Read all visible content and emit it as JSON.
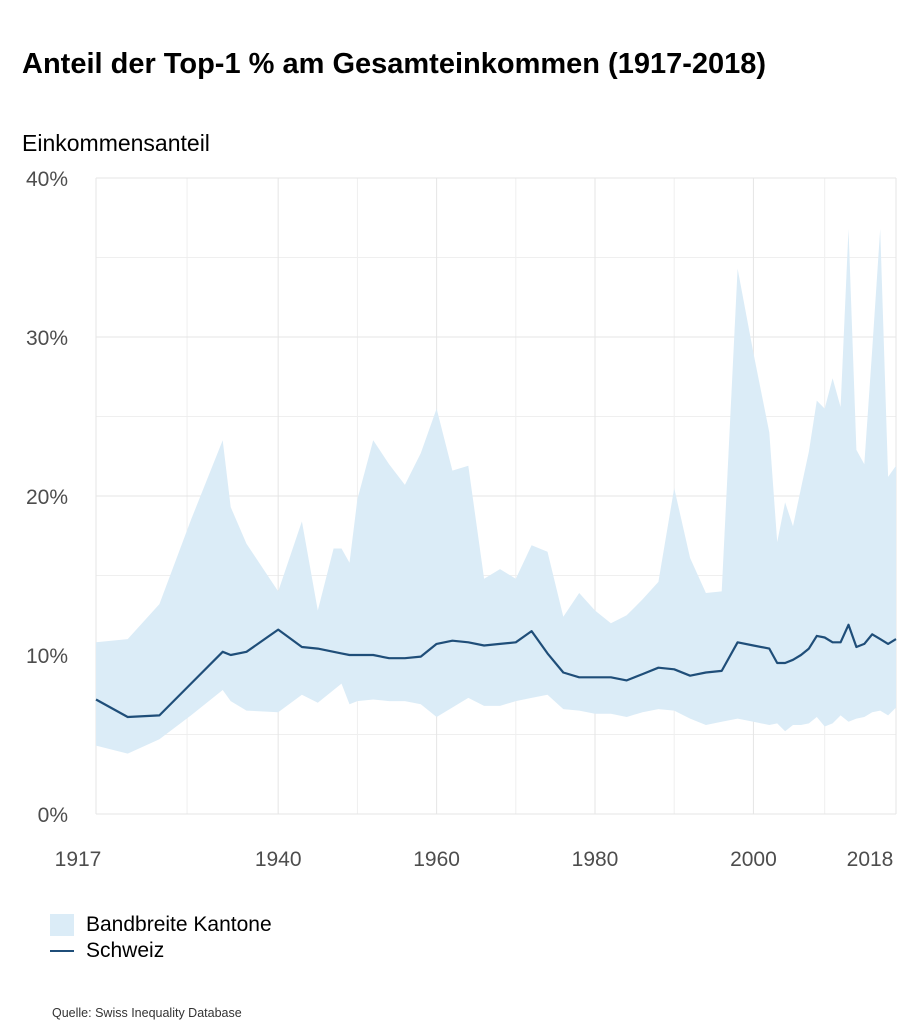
{
  "title": "Anteil der Top-1 % am Gesamteinkommen (1917-2018)",
  "source": "Quelle: Swiss Inequality Database",
  "legend": {
    "band": "Bandbreite Kantone",
    "line": "Schweiz"
  },
  "colors": {
    "band": "#dbecf7",
    "line": "#1f4e79",
    "grid": "#e5e5e5",
    "tick_text": "#4d4d4d"
  },
  "chart_data": {
    "type": "area",
    "title": "Anteil der Top-1 % am Gesamteinkommen (1917-2018)",
    "ylabel": "Einkommensanteil",
    "xlabel": "",
    "xlim": [
      1917,
      2018
    ],
    "ylim": [
      0,
      40
    ],
    "x_ticks": [
      1917,
      1940,
      1960,
      1980,
      2000,
      2018
    ],
    "x_tick_labels": [
      "1917",
      "1940",
      "1960",
      "1980",
      "2000",
      "2018"
    ],
    "y_ticks": [
      0,
      10,
      20,
      30,
      40
    ],
    "y_tick_labels": [
      "0%",
      "10%",
      "20%",
      "30%",
      "40%"
    ],
    "grid": true,
    "legend_position": "bottom-left",
    "series": [
      {
        "name": "Bandbreite Kantone",
        "kind": "band",
        "x": [
          1917,
          1921,
          1925,
          1929,
          1933,
          1934,
          1936,
          1940,
          1943,
          1945,
          1947,
          1948,
          1949,
          1950,
          1952,
          1954,
          1956,
          1958,
          1960,
          1962,
          1964,
          1966,
          1968,
          1970,
          1972,
          1974,
          1976,
          1978,
          1980,
          1982,
          1984,
          1986,
          1988,
          1990,
          1992,
          1994,
          1996,
          1998,
          2000,
          2002,
          2003,
          2004,
          2005,
          2006,
          2007,
          2008,
          2009,
          2010,
          2011,
          2012,
          2013,
          2014,
          2015,
          2016,
          2017,
          2018
        ],
        "upper": [
          10.8,
          11.0,
          13.2,
          18.5,
          23.5,
          19.3,
          17.0,
          14.0,
          18.4,
          12.8,
          16.7,
          16.7,
          15.8,
          19.8,
          23.5,
          22.0,
          20.7,
          22.7,
          25.5,
          21.6,
          21.9,
          14.8,
          15.4,
          14.8,
          16.9,
          16.5,
          12.4,
          13.9,
          12.8,
          12.0,
          12.5,
          13.5,
          14.6,
          20.5,
          16.1,
          13.9,
          14.0,
          34.3,
          29.0,
          24.0,
          17.1,
          19.6,
          18.1,
          20.5,
          22.8,
          26.0,
          25.5,
          27.4,
          25.6,
          36.8,
          22.9,
          22.0,
          29.2,
          36.8,
          21.2,
          21.9
        ],
        "lower": [
          4.3,
          3.8,
          4.7,
          6.2,
          7.8,
          7.1,
          6.5,
          6.4,
          7.5,
          7.0,
          7.8,
          8.2,
          6.9,
          7.1,
          7.2,
          7.1,
          7.1,
          6.9,
          6.1,
          6.7,
          7.3,
          6.8,
          6.8,
          7.1,
          7.3,
          7.5,
          6.6,
          6.5,
          6.3,
          6.3,
          6.1,
          6.4,
          6.6,
          6.5,
          6.0,
          5.6,
          5.8,
          6.0,
          5.8,
          5.6,
          5.7,
          5.2,
          5.6,
          5.6,
          5.7,
          6.1,
          5.5,
          5.7,
          6.2,
          5.8,
          6.0,
          6.1,
          6.4,
          6.5,
          6.2,
          6.7
        ]
      },
      {
        "name": "Schweiz",
        "kind": "line",
        "x": [
          1917,
          1921,
          1925,
          1929,
          1933,
          1934,
          1936,
          1940,
          1943,
          1945,
          1947,
          1948,
          1949,
          1950,
          1952,
          1954,
          1956,
          1958,
          1960,
          1962,
          1964,
          1966,
          1968,
          1970,
          1972,
          1974,
          1976,
          1978,
          1980,
          1982,
          1984,
          1986,
          1988,
          1990,
          1992,
          1994,
          1996,
          1998,
          2000,
          2002,
          2003,
          2004,
          2005,
          2006,
          2007,
          2008,
          2009,
          2010,
          2011,
          2012,
          2013,
          2014,
          2015,
          2016,
          2017,
          2018
        ],
        "y": [
          7.2,
          6.1,
          6.2,
          8.2,
          10.2,
          10.0,
          10.2,
          11.6,
          10.5,
          10.4,
          10.2,
          10.1,
          10.0,
          10.0,
          10.0,
          9.8,
          9.8,
          9.9,
          10.7,
          10.9,
          10.8,
          10.6,
          10.7,
          10.8,
          11.5,
          10.1,
          8.9,
          8.6,
          8.6,
          8.6,
          8.4,
          8.8,
          9.2,
          9.1,
          8.7,
          8.9,
          9.0,
          10.8,
          10.6,
          10.4,
          9.5,
          9.5,
          9.7,
          10.0,
          10.4,
          11.2,
          11.1,
          10.8,
          10.8,
          11.9,
          10.5,
          10.7,
          11.3,
          11.0,
          10.7,
          11.0
        ]
      }
    ]
  }
}
